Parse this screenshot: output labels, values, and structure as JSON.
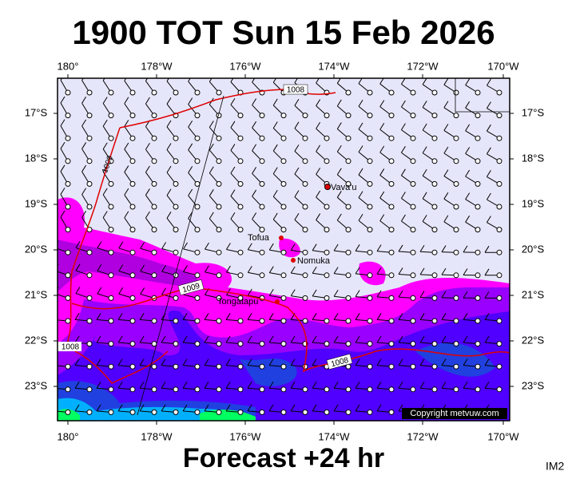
{
  "title": "1900 TOT Sun 15 Feb 2026",
  "longitude_labels": [
    "180°",
    "178°W",
    "176°W",
    "174°W",
    "172°W",
    "170°W"
  ],
  "latitude_labels": [
    "17°S",
    "18°S",
    "19°S",
    "20°S",
    "21°S",
    "22°S",
    "23°S"
  ],
  "places": [
    "Vava'u",
    "Tofua",
    "Nomuka",
    "Tongatapu"
  ],
  "isobar_labels": [
    "1008",
    "1009",
    "1009",
    "1008",
    "1008"
  ],
  "copyright": "Copyright metvuw.com",
  "footer": "Forecast +24 hr",
  "corner": "IM2"
}
